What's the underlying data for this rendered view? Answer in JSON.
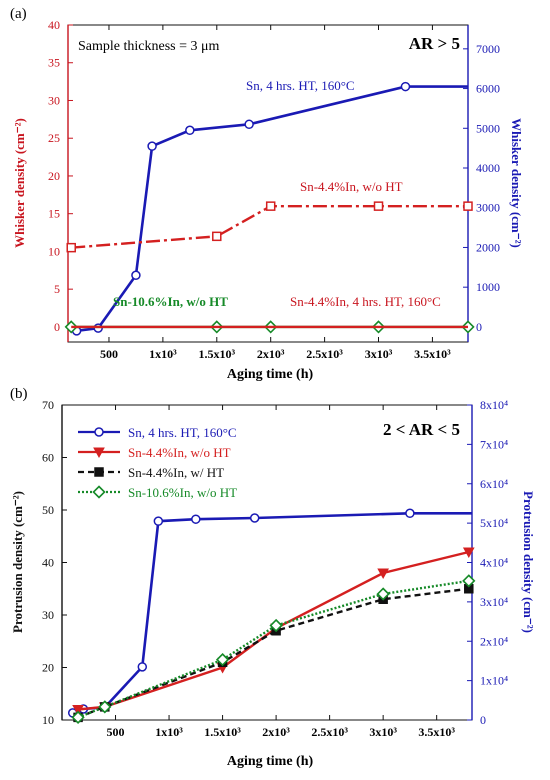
{
  "chart_data": [
    {
      "panel_label": "(a)",
      "type": "line",
      "annotations": {
        "thickness": "Sample thickness = 3 μm",
        "ar": "AR > 5",
        "sn": "Sn, 4 hrs. HT, 160°C",
        "sn44": "Sn-4.4%In, w/o HT",
        "sn106": "Sn-10.6%In, w/o HT",
        "sn44ht": "Sn-4.4%In, 4 hrs. HT, 160°C"
      },
      "xlabel": "Aging time (h)",
      "ylabel": "Whisker density (cm⁻²)",
      "y2label": "Whisker density (cm⁻²)",
      "xlim": [
        120,
        3830
      ],
      "ylim": [
        -2,
        40
      ],
      "y2lim": [
        -380,
        7600
      ],
      "xticks": [
        500,
        1000,
        1500,
        2000,
        2500,
        3000,
        3500
      ],
      "xtick_labels": [
        "500",
        "1x10³",
        "1.5x10³",
        "2x10³",
        "2.5x10³",
        "3x10³",
        "3.5x10³"
      ],
      "yticks": [
        0,
        5,
        10,
        15,
        20,
        25,
        30,
        35,
        40
      ],
      "y2ticks": [
        0,
        1000,
        2000,
        3000,
        4000,
        5000,
        6000,
        7000
      ],
      "series": [
        {
          "name": "Sn, 4 hrs. HT, 160°C",
          "axis": "right",
          "color": "#1a1ab4",
          "dash": "",
          "marker": "circle",
          "x": [
            200,
            400,
            750,
            900,
            1250,
            1800,
            3250,
            3830
          ],
          "y": [
            -100,
            -30,
            1300,
            4550,
            4950,
            5100,
            6050,
            6050
          ],
          "marker_x": [
            200,
            400,
            750,
            900,
            1250,
            1800,
            3250
          ]
        },
        {
          "name": "Sn-4.4%In, w/o HT",
          "axis": "left",
          "color": "#d42020",
          "dash": "14 4 3 4",
          "marker": "square",
          "x": [
            150,
            1500,
            2000,
            3000,
            3830
          ],
          "y": [
            10.5,
            12,
            16,
            16,
            16
          ]
        },
        {
          "name": "Sn-10.6%In, w/o HT",
          "axis": "left",
          "color": "#168a28",
          "dash": "",
          "marker": "diamond",
          "x": [
            150,
            1500,
            2000,
            3000,
            3830
          ],
          "y": [
            0,
            0,
            0,
            0,
            0
          ]
        },
        {
          "name": "Sn-4.4%In, 4 hrs. HT, 160°C",
          "axis": "left",
          "color": "#d42020",
          "dash": "",
          "marker": "none",
          "x": [
            150,
            3830
          ],
          "y": [
            0,
            0
          ]
        }
      ]
    },
    {
      "panel_label": "(b)",
      "type": "line",
      "annotations": {
        "ar": "2 < AR < 5"
      },
      "xlabel": "Aging time (h)",
      "ylabel": "Protrusion density (cm⁻²)",
      "y2label": "Protrusion density (cm⁻²)",
      "xlim": [
        0,
        3830
      ],
      "ylim": [
        10,
        70
      ],
      "y2lim": [
        0,
        80000
      ],
      "xticks": [
        500,
        1000,
        1500,
        2000,
        2500,
        3000,
        3500
      ],
      "xtick_labels": [
        "500",
        "1x10³",
        "1.5x10³",
        "2x10³",
        "2.5x10³",
        "3x10³",
        "3.5x10³"
      ],
      "yticks": [
        10,
        20,
        30,
        40,
        50,
        60,
        70
      ],
      "y2ticks": [
        0,
        10000,
        20000,
        30000,
        40000,
        50000,
        60000,
        70000,
        80000
      ],
      "y2tick_labels": [
        "0",
        "1x10⁴",
        "2x10⁴",
        "3x10⁴",
        "4x10⁴",
        "5x10⁴",
        "6x10⁴",
        "7x10⁴",
        "8x10⁴"
      ],
      "legend": [
        "Sn, 4 hrs. HT, 160°C",
        "Sn-4.4%In, w/o HT",
        "Sn-4.4%In, w/ HT",
        "Sn-10.6%In, w/o HT"
      ],
      "series": [
        {
          "name": "Sn, 4 hrs. HT, 160°C",
          "axis": "right",
          "color": "#1a1ab4",
          "dash": "",
          "marker": "circle",
          "x": [
            100,
            200,
            400,
            750,
            900,
            1250,
            1800,
            3250,
            3830
          ],
          "y": [
            1800,
            2800,
            3200,
            13500,
            50500,
            51000,
            51300,
            52500,
            52500
          ],
          "marker_x": [
            100,
            200,
            400,
            750,
            900,
            1250,
            1800,
            3250
          ]
        },
        {
          "name": "Sn-4.4%In, w/o HT",
          "axis": "left",
          "color": "#d42020",
          "dash": "",
          "marker": "triangle",
          "x": [
            150,
            400,
            1500,
            2000,
            3000,
            3800
          ],
          "y": [
            12,
            12.5,
            20,
            27.5,
            38,
            42
          ]
        },
        {
          "name": "Sn-4.4%In, w/ HT",
          "axis": "left",
          "color": "#111111",
          "dash": "6 4",
          "marker": "square",
          "x": [
            150,
            400,
            1500,
            2000,
            3000,
            3800
          ],
          "y": [
            10.5,
            12.5,
            21,
            27,
            33,
            35
          ]
        },
        {
          "name": "Sn-10.6%In, w/o HT",
          "axis": "left",
          "color": "#168a28",
          "dash": "2 2",
          "marker": "diamond",
          "x": [
            150,
            400,
            1500,
            2000,
            3000,
            3800
          ],
          "y": [
            10.5,
            12.5,
            21.5,
            28,
            34,
            36.5
          ]
        }
      ]
    }
  ]
}
